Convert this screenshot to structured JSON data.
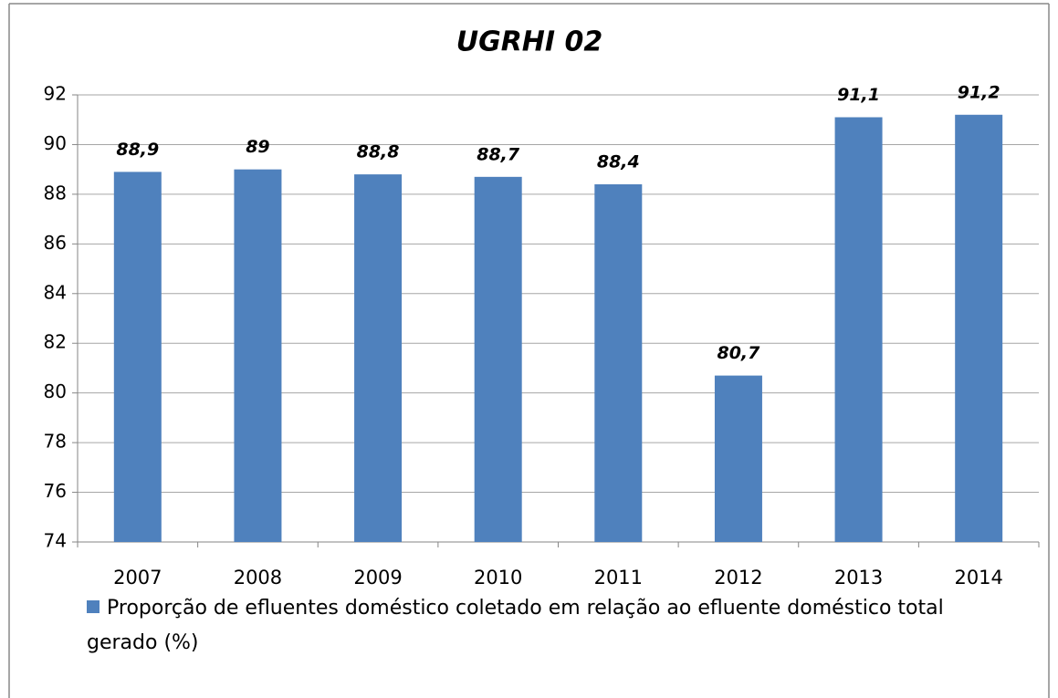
{
  "chart_data": {
    "type": "bar",
    "title": "UGRHI 02",
    "categories": [
      "2007",
      "2008",
      "2009",
      "2010",
      "2011",
      "2012",
      "2013",
      "2014"
    ],
    "series": [
      {
        "name": "Proporção de efluentes doméstico coletado em relação ao efluente doméstico total gerado (%)",
        "color": "#4f81bd",
        "values": [
          88.9,
          89,
          88.8,
          88.7,
          88.4,
          80.7,
          91.1,
          91.2
        ],
        "value_labels": [
          "88,9",
          "89",
          "88,8",
          "88,7",
          "88,4",
          "80,7",
          "91,1",
          "91,2"
        ]
      }
    ],
    "ylim": [
      74,
      92
    ],
    "yticks": [
      74,
      76,
      78,
      80,
      82,
      84,
      86,
      88,
      90,
      92
    ],
    "grid": true,
    "legend": "bottom"
  }
}
